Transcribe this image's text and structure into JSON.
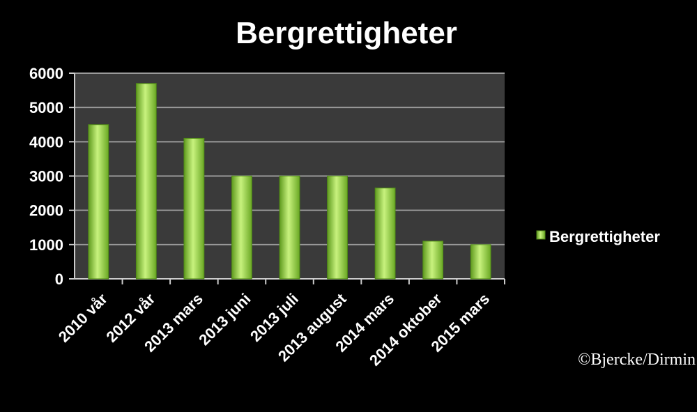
{
  "chart_data": {
    "type": "bar",
    "title": "Bergrettigheter",
    "categories": [
      "2010  vår",
      "2012  vår",
      "2013 mars",
      "2013 juni",
      "2013 juli",
      "2013 august",
      "2014 mars",
      "2014 oktober",
      "2015 mars"
    ],
    "series": [
      {
        "name": "Bergrettigheter",
        "values": [
          4500,
          5700,
          4100,
          3000,
          3000,
          3000,
          2650,
          1100,
          1000
        ]
      }
    ],
    "xlabel": "",
    "ylabel": "",
    "ylim": [
      0,
      6000
    ],
    "yticks": [
      "0",
      "1000",
      "2000",
      "3000",
      "4000",
      "5000",
      "6000"
    ],
    "grid": true,
    "legend": "right",
    "colors": {
      "bar": "#9fe04a",
      "plot_bg": "#3a3a3a",
      "grid": "#9a9a9a",
      "background": "#000000"
    }
  },
  "credit": "©Bjercke/Dirmin"
}
